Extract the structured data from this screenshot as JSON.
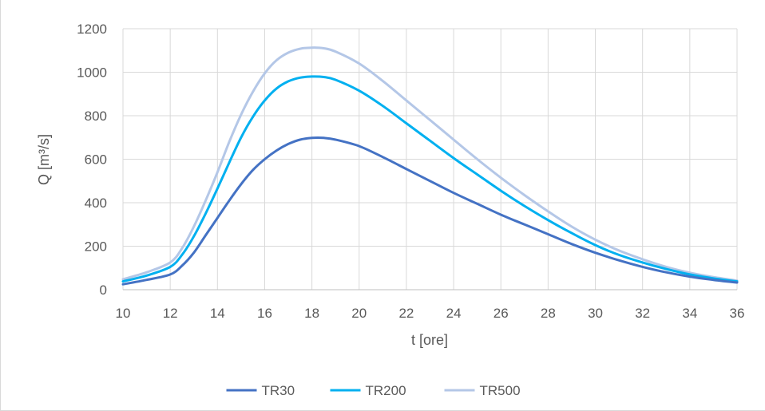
{
  "chart_data": {
    "type": "line",
    "title": "",
    "xlabel": "t [ore]",
    "ylabel": "Q [m³/s]",
    "xlim": [
      10,
      36
    ],
    "ylim": [
      0,
      1200
    ],
    "xticks": [
      10,
      12,
      14,
      16,
      18,
      20,
      22,
      24,
      26,
      28,
      30,
      32,
      34,
      36
    ],
    "yticks": [
      0,
      200,
      400,
      600,
      800,
      1000,
      1200
    ],
    "grid": true,
    "legend_position": "bottom",
    "series": [
      {
        "name": "TR30",
        "color": "#4472c4",
        "x": [
          10,
          11,
          12,
          12.5,
          13,
          13.5,
          14,
          14.5,
          15,
          15.5,
          16,
          16.5,
          17,
          17.5,
          18,
          18.5,
          19,
          20,
          21,
          22,
          23,
          24,
          25,
          26,
          27,
          28,
          29,
          30,
          31,
          32,
          33,
          34,
          35,
          36
        ],
        "values": [
          25,
          45,
          70,
          110,
          170,
          250,
          330,
          410,
          485,
          550,
          600,
          640,
          670,
          690,
          698,
          698,
          690,
          660,
          610,
          555,
          500,
          445,
          395,
          345,
          300,
          255,
          210,
          170,
          135,
          105,
          80,
          60,
          45,
          33
        ]
      },
      {
        "name": "TR200",
        "color": "#00b0f0",
        "x": [
          10,
          11,
          12,
          12.5,
          13,
          13.5,
          14,
          14.5,
          15,
          15.5,
          16,
          16.5,
          17,
          17.5,
          18,
          18.5,
          19,
          20,
          21,
          22,
          23,
          24,
          25,
          26,
          27,
          28,
          29,
          30,
          31,
          32,
          33,
          34,
          35,
          36
        ],
        "values": [
          38,
          65,
          105,
          160,
          245,
          350,
          465,
          585,
          700,
          795,
          870,
          925,
          958,
          975,
          980,
          978,
          965,
          915,
          845,
          765,
          685,
          605,
          530,
          455,
          385,
          320,
          260,
          205,
          160,
          125,
          95,
          70,
          52,
          38
        ]
      },
      {
        "name": "TR500",
        "color": "#b4c7e7",
        "x": [
          10,
          11,
          12,
          12.5,
          13,
          13.5,
          14,
          14.5,
          15,
          15.5,
          16,
          16.5,
          17,
          17.5,
          18,
          18.5,
          19,
          20,
          21,
          22,
          23,
          24,
          25,
          26,
          27,
          28,
          29,
          30,
          31,
          32,
          33,
          34,
          35,
          36
        ],
        "values": [
          48,
          80,
          125,
          190,
          290,
          410,
          540,
          680,
          805,
          910,
          995,
          1055,
          1090,
          1108,
          1113,
          1110,
          1095,
          1040,
          960,
          870,
          780,
          690,
          600,
          515,
          435,
          360,
          290,
          230,
          180,
          140,
          105,
          78,
          58,
          42
        ]
      }
    ]
  }
}
